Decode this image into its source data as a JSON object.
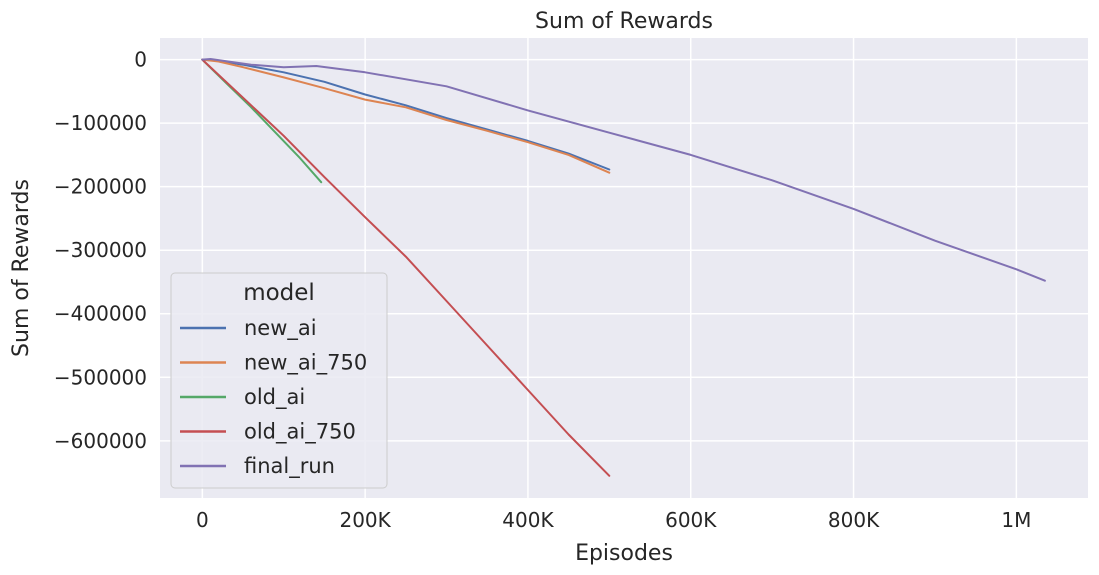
{
  "chart_data": {
    "type": "line",
    "title": "Sum of Rewards",
    "xlabel": "Episodes",
    "ylabel": "Sum of Rewards",
    "xlim": [
      -52000,
      1088000
    ],
    "ylim": [
      -690000,
      34000
    ],
    "grid": true,
    "background": "#eaeaf2",
    "x_ticks": [
      {
        "value": 0,
        "label": "0"
      },
      {
        "value": 200000,
        "label": "200K"
      },
      {
        "value": 400000,
        "label": "400K"
      },
      {
        "value": 600000,
        "label": "600K"
      },
      {
        "value": 800000,
        "label": "800K"
      },
      {
        "value": 1000000,
        "label": "1M"
      }
    ],
    "y_ticks": [
      {
        "value": 0,
        "label": "0"
      },
      {
        "value": -100000,
        "label": "−100000"
      },
      {
        "value": -200000,
        "label": "−200000"
      },
      {
        "value": -300000,
        "label": "−300000"
      },
      {
        "value": -400000,
        "label": "−400000"
      },
      {
        "value": -500000,
        "label": "−500000"
      },
      {
        "value": -600000,
        "label": "−600000"
      }
    ],
    "legend": {
      "title": "model",
      "position": "lower-left"
    },
    "series": [
      {
        "name": "new_ai",
        "color": "#4c72b0",
        "points": [
          [
            0,
            0
          ],
          [
            20000,
            -2000
          ],
          [
            50000,
            -8000
          ],
          [
            100000,
            -20000
          ],
          [
            150000,
            -35000
          ],
          [
            200000,
            -55000
          ],
          [
            250000,
            -72000
          ],
          [
            300000,
            -92000
          ],
          [
            350000,
            -110000
          ],
          [
            400000,
            -128000
          ],
          [
            450000,
            -148000
          ],
          [
            500000,
            -173000
          ]
        ]
      },
      {
        "name": "new_ai_750",
        "color": "#dd8452",
        "points": [
          [
            0,
            0
          ],
          [
            20000,
            -3000
          ],
          [
            50000,
            -12000
          ],
          [
            100000,
            -28000
          ],
          [
            150000,
            -45000
          ],
          [
            200000,
            -63000
          ],
          [
            250000,
            -75000
          ],
          [
            300000,
            -95000
          ],
          [
            350000,
            -112000
          ],
          [
            400000,
            -130000
          ],
          [
            450000,
            -150000
          ],
          [
            500000,
            -178000
          ]
        ]
      },
      {
        "name": "old_ai",
        "color": "#55a868",
        "points": [
          [
            0,
            0
          ],
          [
            30000,
            -38000
          ],
          [
            60000,
            -75000
          ],
          [
            90000,
            -115000
          ],
          [
            120000,
            -155000
          ],
          [
            146000,
            -193000
          ]
        ]
      },
      {
        "name": "old_ai_750",
        "color": "#c44e52",
        "points": [
          [
            0,
            0
          ],
          [
            50000,
            -60000
          ],
          [
            100000,
            -120000
          ],
          [
            150000,
            -185000
          ],
          [
            200000,
            -248000
          ],
          [
            250000,
            -310000
          ],
          [
            300000,
            -380000
          ],
          [
            350000,
            -450000
          ],
          [
            400000,
            -520000
          ],
          [
            450000,
            -590000
          ],
          [
            500000,
            -655000
          ]
        ]
      },
      {
        "name": "final_run",
        "color": "#8172b3",
        "points": [
          [
            0,
            0
          ],
          [
            10000,
            1000
          ],
          [
            60000,
            -8000
          ],
          [
            100000,
            -12000
          ],
          [
            140000,
            -10000
          ],
          [
            200000,
            -20000
          ],
          [
            300000,
            -42000
          ],
          [
            400000,
            -80000
          ],
          [
            500000,
            -115000
          ],
          [
            600000,
            -150000
          ],
          [
            700000,
            -190000
          ],
          [
            800000,
            -235000
          ],
          [
            900000,
            -285000
          ],
          [
            1000000,
            -330000
          ],
          [
            1035000,
            -348000
          ]
        ]
      }
    ]
  }
}
